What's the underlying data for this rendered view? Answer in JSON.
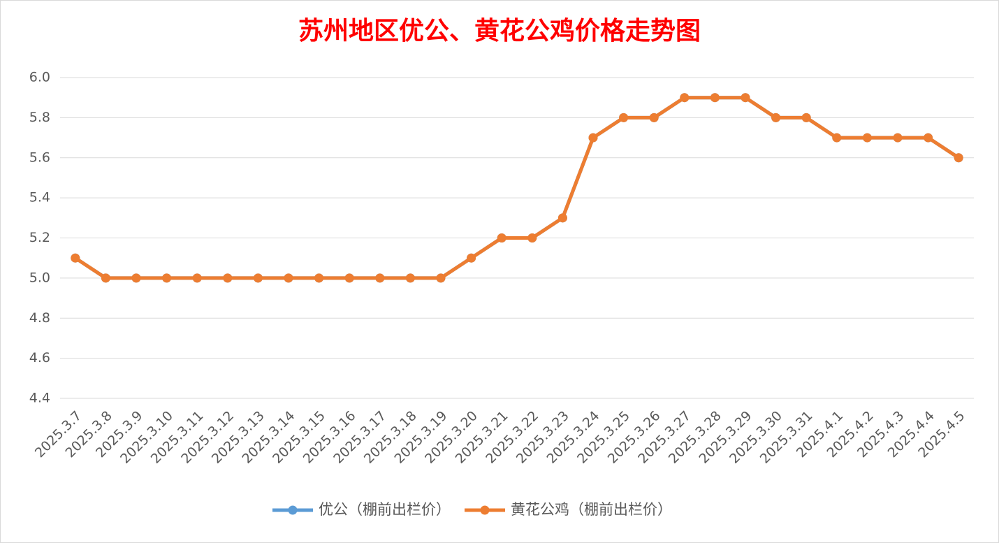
{
  "chart_data": {
    "type": "line",
    "title": "苏州地区优公、黄花公鸡价格走势图",
    "categories": [
      "2025.3.7",
      "2025.3.8",
      "2025.3.9",
      "2025.3.10",
      "2025.3.11",
      "2025.3.12",
      "2025.3.13",
      "2025.3.14",
      "2025.3.15",
      "2025.3.16",
      "2025.3.17",
      "2025.3.18",
      "2025.3.19",
      "2025.3.20",
      "2025.3.21",
      "2025.3.22",
      "2025.3.23",
      "2025.3.24",
      "2025.3.25",
      "2025.3.26",
      "2025.3.27",
      "2025.3.28",
      "2025.3.29",
      "2025.3.30",
      "2025.3.31",
      "2025.4.1",
      "2025.4.2",
      "2025.4.3",
      "2025.4.4",
      "2025.4.5"
    ],
    "series": [
      {
        "name": "优公（棚前出栏价）",
        "color": "#5b9bd5",
        "values": [
          5.1,
          5.0,
          5.0,
          5.0,
          5.0,
          5.0,
          5.0,
          5.0,
          5.0,
          5.0,
          5.0,
          5.0,
          5.0,
          5.1,
          5.2,
          5.2,
          5.3,
          5.7,
          5.8,
          5.8,
          5.9,
          5.9,
          5.9,
          5.8,
          5.8,
          5.7,
          5.7,
          5.7,
          5.7,
          5.6
        ]
      },
      {
        "name": "黄花公鸡（棚前出栏价）",
        "color": "#ed7d31",
        "values": [
          5.1,
          5.0,
          5.0,
          5.0,
          5.0,
          5.0,
          5.0,
          5.0,
          5.0,
          5.0,
          5.0,
          5.0,
          5.0,
          5.1,
          5.2,
          5.2,
          5.3,
          5.7,
          5.8,
          5.8,
          5.9,
          5.9,
          5.9,
          5.8,
          5.8,
          5.7,
          5.7,
          5.7,
          5.7,
          5.6
        ]
      }
    ],
    "ylim": [
      4.4,
      6.0
    ],
    "yticks": [
      4.4,
      4.6,
      4.8,
      {
        "value": 5,
        "label": "5.0"
      },
      5.2,
      5.4,
      5.6,
      5.8,
      {
        "value": 6,
        "label": "6.0"
      }
    ],
    "grid": true,
    "legend": "bottom"
  }
}
